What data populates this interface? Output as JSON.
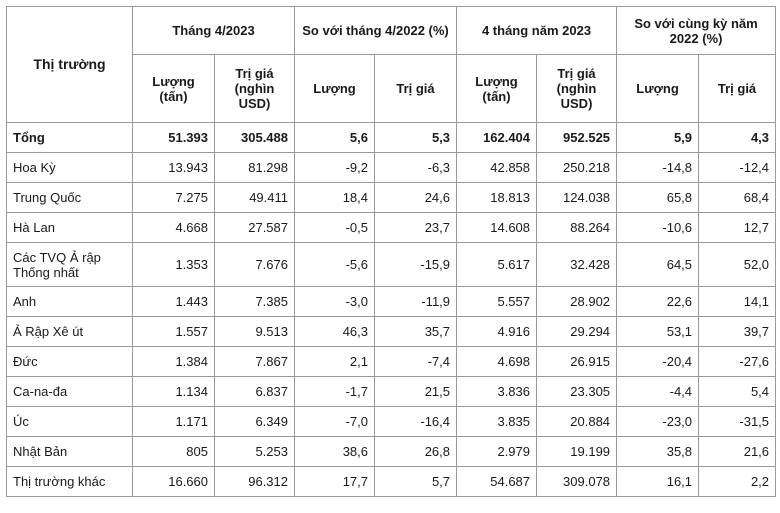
{
  "header": {
    "market": "Thị trường",
    "group_month": "Tháng 4/2023",
    "group_cmp_month": "So với tháng 4/2022 (%)",
    "group_4m": "4 tháng năm 2023",
    "group_cmp_year": "So với cùng kỳ năm 2022 (%)",
    "sub": {
      "qty_unit": "Lượng (tấn)",
      "val_unit": "Trị giá (nghìn USD)",
      "qty": "Lượng",
      "val": "Trị giá"
    }
  },
  "rows": [
    {
      "name": "Tổng",
      "c1": "51.393",
      "c2": "305.488",
      "c3": "5,6",
      "c4": "5,3",
      "c5": "162.404",
      "c6": "952.525",
      "c7": "5,9",
      "c8": "4,3"
    },
    {
      "name": "Hoa Kỳ",
      "c1": "13.943",
      "c2": "81.298",
      "c3": "-9,2",
      "c4": "-6,3",
      "c5": "42.858",
      "c6": "250.218",
      "c7": "-14,8",
      "c8": "-12,4"
    },
    {
      "name": "Trung Quốc",
      "c1": "7.275",
      "c2": "49.411",
      "c3": "18,4",
      "c4": "24,6",
      "c5": "18.813",
      "c6": "124.038",
      "c7": "65,8",
      "c8": "68,4"
    },
    {
      "name": "Hà Lan",
      "c1": "4.668",
      "c2": "27.587",
      "c3": "-0,5",
      "c4": "23,7",
      "c5": "14.608",
      "c6": "88.264",
      "c7": "-10,6",
      "c8": "12,7"
    },
    {
      "name": "Các TVQ Ả rập Thống nhất",
      "c1": "1.353",
      "c2": "7.676",
      "c3": "-5,6",
      "c4": "-15,9",
      "c5": "5.617",
      "c6": "32.428",
      "c7": "64,5",
      "c8": "52,0"
    },
    {
      "name": "Anh",
      "c1": "1.443",
      "c2": "7.385",
      "c3": "-3,0",
      "c4": "-11,9",
      "c5": "5.557",
      "c6": "28.902",
      "c7": "22,6",
      "c8": "14,1"
    },
    {
      "name": "Ả Rập Xê út",
      "c1": "1.557",
      "c2": "9.513",
      "c3": "46,3",
      "c4": "35,7",
      "c5": "4.916",
      "c6": "29.294",
      "c7": "53,1",
      "c8": "39,7"
    },
    {
      "name": "Đức",
      "c1": "1.384",
      "c2": "7.867",
      "c3": "2,1",
      "c4": "-7,4",
      "c5": "4.698",
      "c6": "26.915",
      "c7": "-20,4",
      "c8": "-27,6"
    },
    {
      "name": "Ca-na-đa",
      "c1": "1.134",
      "c2": "6.837",
      "c3": "-1,7",
      "c4": "21,5",
      "c5": "3.836",
      "c6": "23.305",
      "c7": "-4,4",
      "c8": "5,4"
    },
    {
      "name": "Úc",
      "c1": "1.171",
      "c2": "6.349",
      "c3": "-7,0",
      "c4": "-16,4",
      "c5": "3.835",
      "c6": "20.884",
      "c7": "-23,0",
      "c8": "-31,5"
    },
    {
      "name": "Nhật Bản",
      "c1": "805",
      "c2": "5.253",
      "c3": "38,6",
      "c4": "26,8",
      "c5": "2.979",
      "c6": "19.199",
      "c7": "35,8",
      "c8": "21,6"
    },
    {
      "name": "Thị trường khác",
      "c1": "16.660",
      "c2": "96.312",
      "c3": "17,7",
      "c4": "5,7",
      "c5": "54.687",
      "c6": "309.078",
      "c7": "16,1",
      "c8": "2,2"
    }
  ]
}
